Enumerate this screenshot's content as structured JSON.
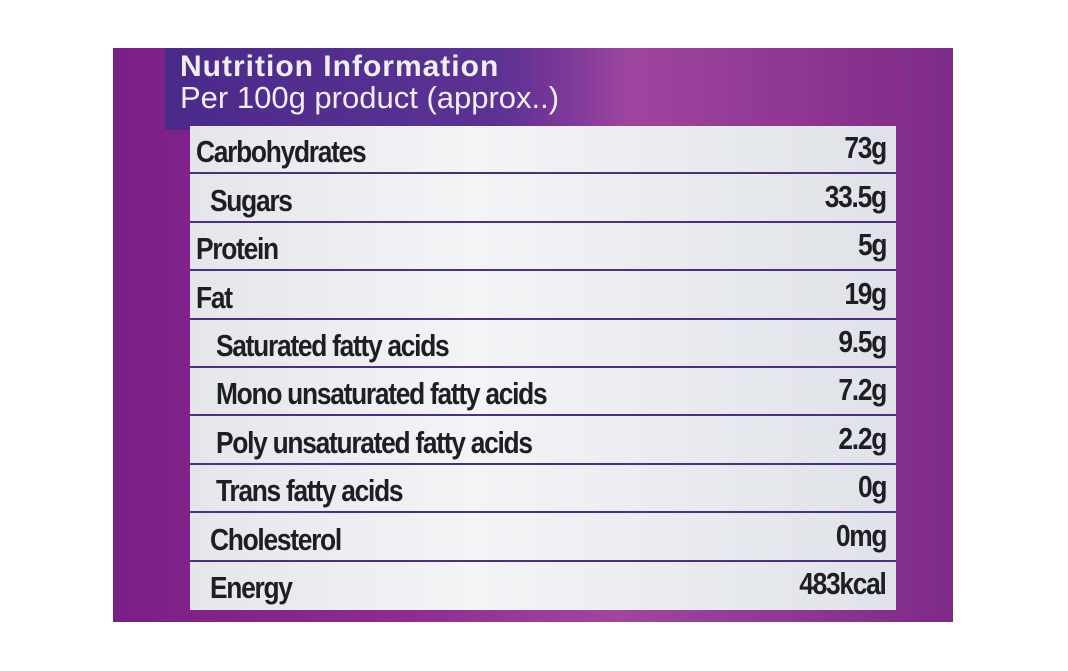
{
  "header": {
    "title": "Nutrition Information",
    "subtitle": "Per 100g product (approx..)"
  },
  "table": {
    "rows": [
      [
        "Carbohydrates",
        "73g"
      ],
      [
        "Sugars",
        "33.5g"
      ],
      [
        "Protein",
        "5g"
      ],
      [
        "Fat",
        "19g"
      ],
      [
        "Saturated fatty acids",
        "9.5g"
      ],
      [
        "Mono unsaturated fatty acids",
        "7.2g"
      ],
      [
        "Poly unsaturated fatty acids",
        "2.2g"
      ],
      [
        "Trans fatty acids",
        "0g"
      ],
      [
        "Cholesterol",
        "0mg"
      ],
      [
        "Energy",
        "483kcal"
      ]
    ]
  }
}
